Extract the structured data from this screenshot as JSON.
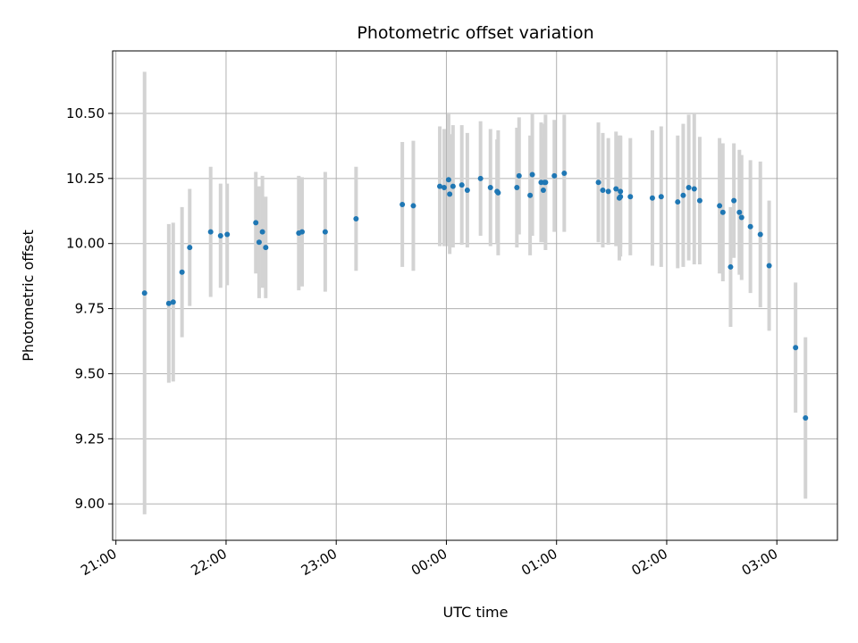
{
  "chart_data": {
    "type": "scatter",
    "title": "Photometric offset variation",
    "xlabel": "UTC time",
    "ylabel": "Photometric offset",
    "x_unit": "hours relative to 00:00 UTC",
    "xlim": [
      -3.03,
      3.55
    ],
    "ylim": [
      8.86,
      10.74
    ],
    "x_ticks": [
      -3,
      -2,
      -1,
      0,
      1,
      2,
      3
    ],
    "x_tick_labels": [
      "21:00",
      "22:00",
      "23:00",
      "00:00",
      "01:00",
      "02:00",
      "03:00"
    ],
    "y_ticks": [
      9.0,
      9.25,
      9.5,
      9.75,
      10.0,
      10.25,
      10.5
    ],
    "y_tick_labels": [
      "9.00",
      "9.25",
      "9.50",
      "9.75",
      "10.00",
      "10.25",
      "10.50"
    ],
    "grid": true,
    "colors": {
      "marker": "#1f77b4",
      "errorbar": "#d3d3d3",
      "grid": "#b0b0b0"
    },
    "series": [
      {
        "x": [
          -2.74,
          -2.52,
          -2.48,
          -2.4,
          -2.33,
          -2.14,
          -2.05,
          -1.99,
          -1.73,
          -1.7,
          -1.67,
          -1.64,
          -1.34,
          -1.31,
          -1.1,
          -0.82,
          -0.4,
          -0.3,
          -0.06,
          -0.02,
          0.02,
          0.03,
          0.06,
          0.14,
          0.19,
          0.31,
          0.4,
          0.46,
          0.47,
          0.64,
          0.66,
          0.76,
          0.78,
          0.86,
          0.89,
          0.9,
          0.88,
          0.98,
          1.07,
          1.38,
          1.42,
          1.47,
          1.54,
          1.57,
          1.58,
          1.58,
          1.67,
          1.87,
          1.95,
          2.1,
          2.15,
          2.2,
          2.25,
          2.3,
          2.48,
          2.51,
          2.58,
          2.61,
          2.66,
          2.68,
          2.76,
          2.85,
          2.93,
          3.17,
          3.26
        ],
        "y": [
          9.81,
          9.77,
          9.775,
          9.89,
          9.985,
          10.045,
          10.03,
          10.035,
          10.08,
          10.005,
          10.045,
          9.985,
          10.04,
          10.045,
          10.045,
          10.095,
          10.15,
          10.145,
          10.22,
          10.215,
          10.245,
          10.19,
          10.22,
          10.225,
          10.205,
          10.25,
          10.215,
          10.2,
          10.195,
          10.215,
          10.26,
          10.185,
          10.265,
          10.235,
          10.235,
          10.235,
          10.205,
          10.26,
          10.27,
          10.235,
          10.205,
          10.2,
          10.21,
          10.175,
          10.2,
          10.18,
          10.18,
          10.175,
          10.18,
          10.16,
          10.185,
          10.215,
          10.21,
          10.165,
          10.145,
          10.12,
          9.91,
          10.165,
          10.12,
          10.1,
          10.065,
          10.035,
          9.915,
          9.6,
          9.33
        ],
        "err": [
          0.85,
          0.305,
          0.305,
          0.25,
          0.225,
          0.25,
          0.2,
          0.195,
          0.195,
          0.215,
          0.215,
          0.195,
          0.22,
          0.21,
          0.23,
          0.2,
          0.24,
          0.25,
          0.23,
          0.225,
          0.255,
          0.23,
          0.235,
          0.23,
          0.22,
          0.22,
          0.225,
          0.2,
          0.24,
          0.23,
          0.225,
          0.23,
          0.235,
          0.23,
          0.225,
          0.26,
          0.2,
          0.215,
          0.225,
          0.23,
          0.22,
          0.205,
          0.22,
          0.24,
          0.215,
          0.23,
          0.225,
          0.26,
          0.27,
          0.255,
          0.275,
          0.28,
          0.29,
          0.245,
          0.26,
          0.265,
          0.23,
          0.22,
          0.24,
          0.24,
          0.255,
          0.28,
          0.25,
          0.25,
          0.31
        ]
      }
    ]
  }
}
